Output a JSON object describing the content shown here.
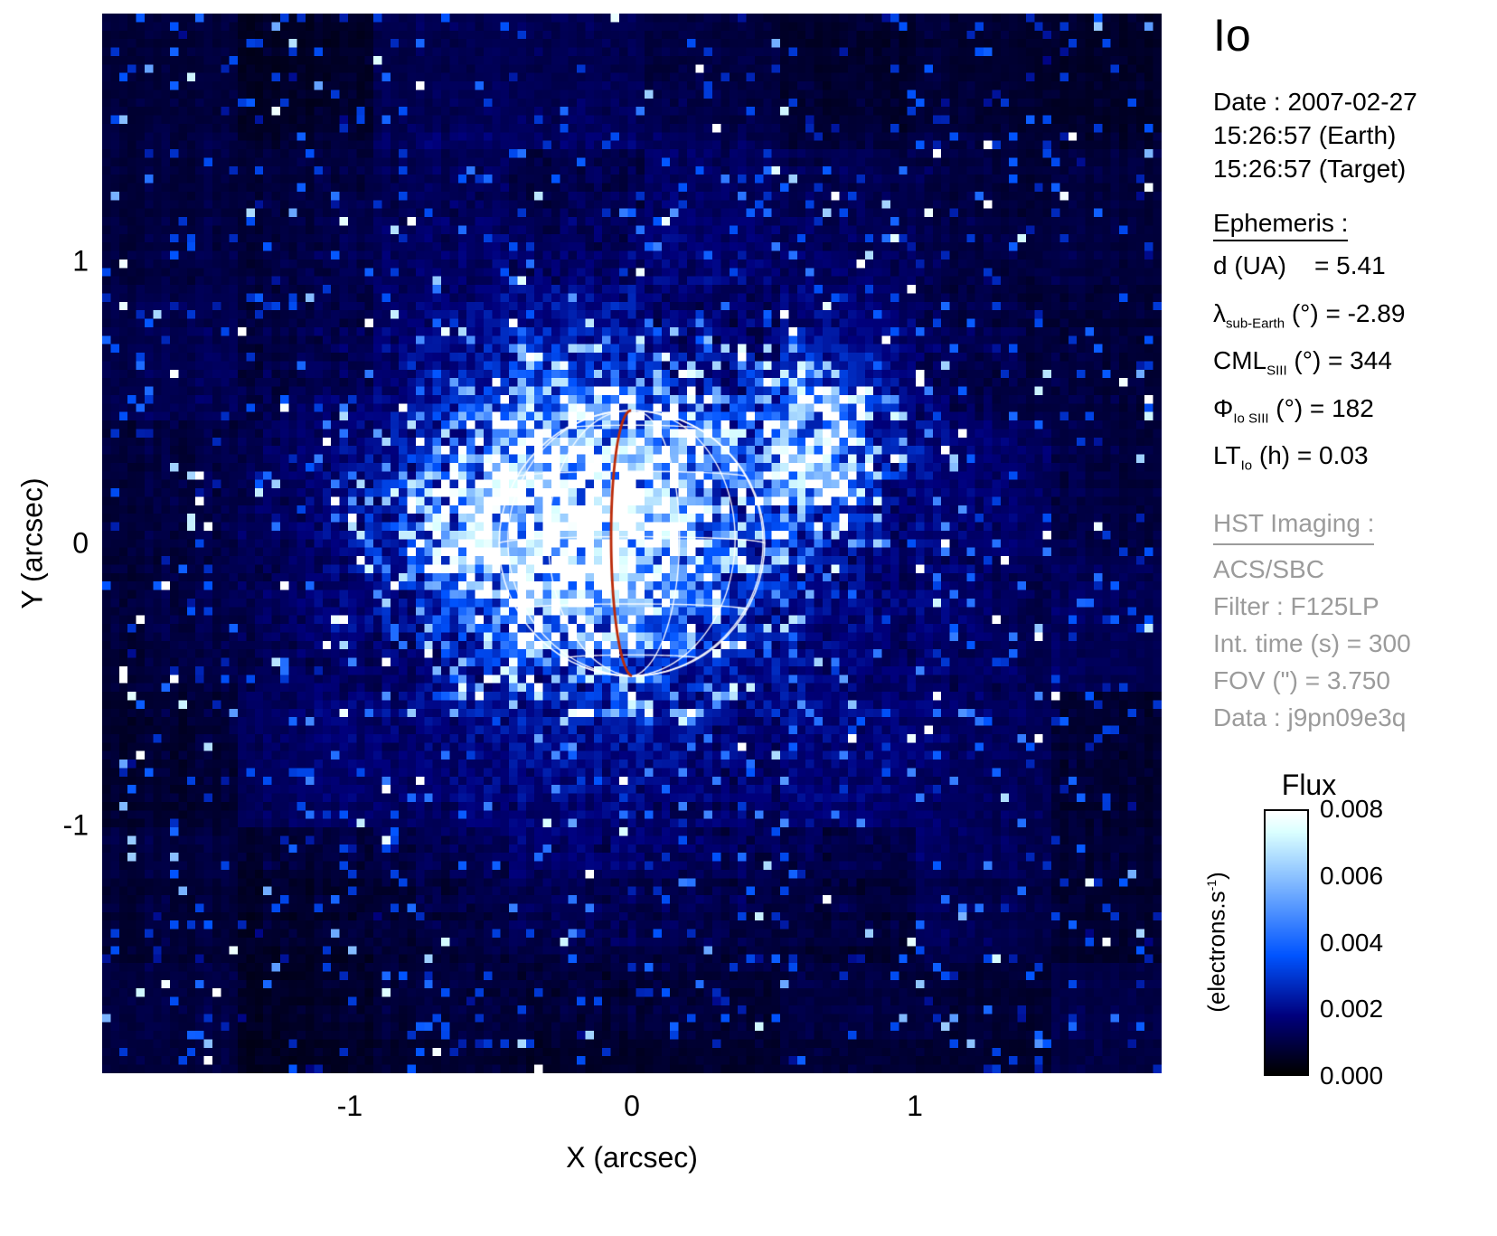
{
  "header": {
    "title": "Io"
  },
  "info_panel": {
    "date_line": "Date : 2007-02-27",
    "time_earth": "15:26:57 (Earth)",
    "time_target": "15:26:57 (Target)",
    "ephemeris_header": "Ephemeris : ",
    "ephemeris": [
      {
        "main": "d (UA)",
        "sub": "",
        "rest": "    = 5.41"
      },
      {
        "main": "λ",
        "sub": "sub-Earth",
        "rest": " (°) = -2.89"
      },
      {
        "main": "CML",
        "sub": "SIII",
        "rest": " (°) = 344"
      },
      {
        "main": "Φ",
        "sub": "Io SIII",
        "rest": " (°) = 182"
      },
      {
        "main": "LT",
        "sub": "Io",
        "rest": " (h) = 0.03"
      }
    ],
    "hst_header": "HST Imaging : ",
    "hst": [
      "ACS/SBC",
      "Filter : F125LP",
      "Int. time (s) = 300",
      "FOV (\") = 3.750",
      "Data : j9pn09e3q"
    ]
  },
  "chart_data": {
    "type": "heatmap",
    "title": "Io",
    "description": "HST ACS/SBC far-UV flux image of Io: dark blue noisy speckle field with bright emission concentrated on and around the disk; white planetary lat-lon wireframe with red prime meridian overlaid at image center.",
    "xlabel": "X (arcsec)",
    "ylabel": "Y (arcsec)",
    "xlim": [
      -1.875,
      1.875
    ],
    "ylim": [
      -1.875,
      1.875
    ],
    "xticks": [
      "-1",
      "0",
      "1"
    ],
    "yticks": [
      "1",
      "0",
      "-1"
    ],
    "grid_n": 125,
    "noise_seed": 20070227,
    "colorbar": {
      "title": "Flux",
      "unit_main": "(electrons.s",
      "unit_sup": "-1",
      "unit_end": ")",
      "ticks": [
        "0.008",
        "0.006",
        "0.004",
        "0.002",
        "0.000"
      ],
      "vmin": 0.0,
      "vmax": 0.008
    },
    "disk": {
      "center_x": 0.0,
      "center_y": 0.0,
      "radius_arcsec": 0.47,
      "sub_earth_lat_deg": -2.89,
      "grid_step_deg": 30,
      "meridian_offset_deg": -9,
      "grid_color": "rgba(255,255,255,0.92)",
      "meridian_color": "#bb2a08"
    },
    "hotspots": [
      {
        "x": -0.12,
        "y": 0.08,
        "sigma": 0.3,
        "amp": 0.85
      },
      {
        "x": 0.65,
        "y": 0.35,
        "sigma": 0.17,
        "amp": 0.7
      },
      {
        "x": -0.55,
        "y": 0.05,
        "sigma": 0.25,
        "amp": 0.38
      },
      {
        "x": 0.0,
        "y": 0.0,
        "sigma": 0.9,
        "amp": 0.3
      }
    ]
  }
}
